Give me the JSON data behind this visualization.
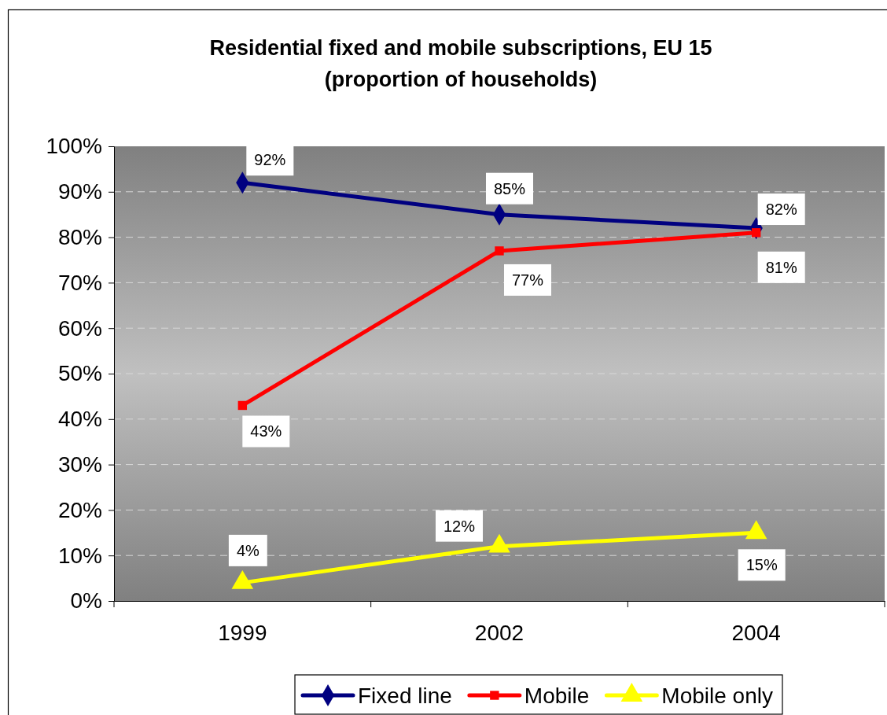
{
  "chart_data": {
    "type": "line",
    "title": "Residential fixed and mobile subscriptions, EU 15",
    "subtitle": "(proportion of households)",
    "categories": [
      "1999",
      "2002",
      "2004"
    ],
    "ylim": [
      0,
      100
    ],
    "yticks": [
      {
        "value": 0,
        "label": "0%"
      },
      {
        "value": 10,
        "label": "10%"
      },
      {
        "value": 20,
        "label": "20%"
      },
      {
        "value": 30,
        "label": "30%"
      },
      {
        "value": 40,
        "label": "40%"
      },
      {
        "value": 50,
        "label": "50%"
      },
      {
        "value": 60,
        "label": "60%"
      },
      {
        "value": 70,
        "label": "70%"
      },
      {
        "value": 80,
        "label": "80%"
      },
      {
        "value": 90,
        "label": "90%"
      },
      {
        "value": 100,
        "label": "100%"
      }
    ],
    "grid": "y",
    "legend": "bottom",
    "series": [
      {
        "name": "Fixed line",
        "color": "#000080",
        "marker": "diamond",
        "values": [
          92,
          85,
          82
        ],
        "value_labels": [
          "92%",
          "85%",
          "82%"
        ]
      },
      {
        "name": "Mobile",
        "color": "#ff0000",
        "marker": "square",
        "values": [
          43,
          77,
          81
        ],
        "value_labels": [
          "43%",
          "77%",
          "81%"
        ]
      },
      {
        "name": "Mobile only",
        "color": "#ffff00",
        "marker": "triangle",
        "values": [
          4,
          12,
          15
        ],
        "value_labels": [
          "4%",
          "12%",
          "15%"
        ]
      }
    ]
  }
}
